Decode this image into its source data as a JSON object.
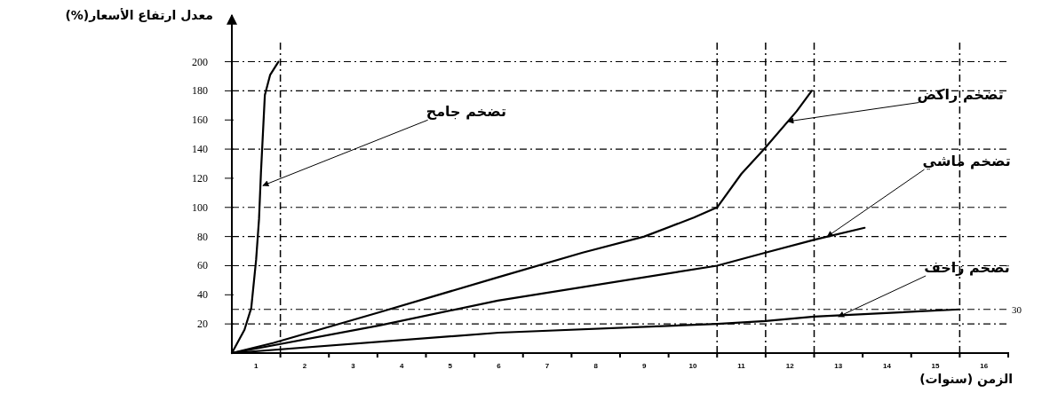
{
  "chart_data": {
    "type": "line",
    "ylabel": "معدل ارتفاع الأسعار(%)",
    "xlabel": "الزمن (سنوات)",
    "xlim": [
      0,
      16
    ],
    "ylim": [
      0,
      232
    ],
    "xticks": [
      {
        "value": 0.5,
        "label": "1"
      },
      {
        "value": 1.5,
        "label": "2"
      },
      {
        "value": 2.5,
        "label": "3"
      },
      {
        "value": 3.5,
        "label": "4"
      },
      {
        "value": 4.5,
        "label": "5"
      },
      {
        "value": 5.5,
        "label": "6"
      },
      {
        "value": 6.5,
        "label": "7"
      },
      {
        "value": 7.5,
        "label": "8"
      },
      {
        "value": 8.5,
        "label": "9"
      },
      {
        "value": 9.5,
        "label": "10"
      },
      {
        "value": 10.5,
        "label": "11"
      },
      {
        "value": 11.5,
        "label": "12"
      },
      {
        "value": 12.5,
        "label": "13"
      },
      {
        "value": 13.5,
        "label": "14"
      },
      {
        "value": 14.5,
        "label": "15"
      },
      {
        "value": 15.5,
        "label": "16"
      },
      {
        "value": 1,
        "label": null
      },
      {
        "value": 2,
        "label": null
      },
      {
        "value": 3,
        "label": null
      },
      {
        "value": 4,
        "label": null
      },
      {
        "value": 5,
        "label": null
      },
      {
        "value": 6,
        "label": null
      },
      {
        "value": 7,
        "label": null
      },
      {
        "value": 8,
        "label": null
      },
      {
        "value": 9,
        "label": null
      },
      {
        "value": 10,
        "label": null
      },
      {
        "value": 11,
        "label": null
      },
      {
        "value": 12,
        "label": null
      },
      {
        "value": 13,
        "label": null
      },
      {
        "value": 14,
        "label": null
      },
      {
        "value": 15,
        "label": null
      },
      {
        "value": 16,
        "label": null
      }
    ],
    "yticks": [
      20,
      40,
      60,
      80,
      100,
      120,
      140,
      160,
      180,
      200
    ],
    "marker": "none",
    "line_style": "solid",
    "series": [
      {
        "color": "#000000",
        "x": [
          0,
          0.26,
          0.4,
          0.5,
          0.56,
          0.6,
          0.68,
          0.79,
          0.96
        ],
        "values": [
          0,
          16,
          31,
          64,
          92,
          124,
          177,
          191,
          200
        ]
      },
      {
        "color": "#000000",
        "x": [
          0,
          0.86,
          3.04,
          5.48,
          7.23,
          8.5,
          9.52,
          10,
          10.5,
          10.97,
          11.64,
          11.95
        ],
        "values": [
          0,
          7,
          28,
          52,
          69,
          80,
          93,
          100,
          123,
          140,
          166,
          180
        ]
      },
      {
        "color": "#000000",
        "x": [
          0,
          3.04,
          5.48,
          10,
          11,
          12.03,
          13.04
        ],
        "values": [
          0,
          19,
          36,
          60,
          69,
          78,
          86
        ]
      },
      {
        "color": "#000000",
        "x": [
          0,
          5.5,
          10,
          11,
          12,
          15
        ],
        "values": [
          0,
          14,
          20,
          22,
          25,
          30
        ]
      }
    ],
    "ref_lines": [
      {
        "axis": "y",
        "value": 200,
        "line_style": "dashed"
      },
      {
        "axis": "y",
        "value": 180,
        "line_style": "dashed"
      },
      {
        "axis": "y",
        "value": 140,
        "line_style": "dashed"
      },
      {
        "axis": "y",
        "value": 100,
        "line_style": "dashed"
      },
      {
        "axis": "y",
        "value": 80,
        "line_style": "dashed"
      },
      {
        "axis": "y",
        "value": 60,
        "line_style": "dashed"
      },
      {
        "axis": "y",
        "value": 20,
        "line_style": "dashed"
      },
      {
        "axis": "y",
        "value": 30,
        "label": "30",
        "line_style": "dashed"
      },
      {
        "axis": "x",
        "value": 1,
        "line_style": "dashed"
      },
      {
        "axis": "x",
        "value": 10,
        "line_style": "dashed"
      },
      {
        "axis": "x",
        "value": 11,
        "line_style": "dashed"
      },
      {
        "axis": "x",
        "value": 12,
        "line_style": "dashed"
      },
      {
        "axis": "x",
        "value": 15,
        "line_style": "dashed"
      }
    ],
    "annotations": [
      {
        "text": "تضخم جامح",
        "x": 0.64,
        "y": 115
      },
      {
        "text": "تضخم راكض",
        "x": 11.46,
        "y": 159
      },
      {
        "text": "تضخم ماشي",
        "x": 12.27,
        "y": 80
      },
      {
        "text": "تضخم زاحف",
        "x": 12.5,
        "y": 25
      }
    ]
  }
}
